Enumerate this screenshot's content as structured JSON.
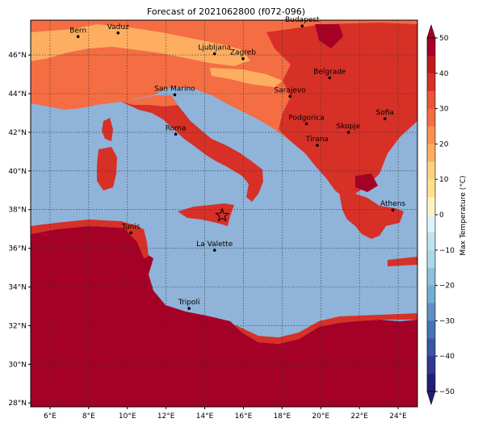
{
  "title": "Forecast of 2021062800 (f072-096)",
  "map": {
    "lon_range": [
      5,
      25
    ],
    "lat_range": [
      27.8,
      47.8
    ],
    "lon_ticks": [
      {
        "v": 6,
        "label": "6°E"
      },
      {
        "v": 8,
        "label": "8°E"
      },
      {
        "v": 10,
        "label": "10°E"
      },
      {
        "v": 12,
        "label": "12°E"
      },
      {
        "v": 14,
        "label": "14°E"
      },
      {
        "v": 16,
        "label": "16°E"
      },
      {
        "v": 18,
        "label": "18°E"
      },
      {
        "v": 20,
        "label": "20°E"
      },
      {
        "v": 22,
        "label": "22°E"
      },
      {
        "v": 24,
        "label": "24°E"
      }
    ],
    "lat_ticks": [
      {
        "v": 28,
        "label": "28°N"
      },
      {
        "v": 30,
        "label": "30°N"
      },
      {
        "v": 32,
        "label": "32°N"
      },
      {
        "v": 34,
        "label": "34°N"
      },
      {
        "v": 36,
        "label": "36°N"
      },
      {
        "v": 38,
        "label": "38°N"
      },
      {
        "v": 40,
        "label": "40°N"
      },
      {
        "v": 42,
        "label": "42°N"
      },
      {
        "v": 44,
        "label": "44°N"
      },
      {
        "v": 46,
        "label": "46°N"
      }
    ],
    "grid": true,
    "sea_color": "#8fb3d9",
    "land_colors": {
      "hot": "#a50026",
      "warm": "#d73027",
      "mild": "#f46d43",
      "cool": "#fdae61"
    },
    "cities": [
      {
        "name": "Bern",
        "lon": 7.45,
        "lat": 46.95
      },
      {
        "name": "Vaduz",
        "lon": 9.52,
        "lat": 47.14
      },
      {
        "name": "Budapest",
        "lon": 19.04,
        "lat": 47.5
      },
      {
        "name": "Ljubljana",
        "lon": 14.51,
        "lat": 46.06
      },
      {
        "name": "Zagreb",
        "lon": 15.98,
        "lat": 45.81
      },
      {
        "name": "Belgrade",
        "lon": 20.46,
        "lat": 44.82
      },
      {
        "name": "San Marino",
        "lon": 12.45,
        "lat": 43.94
      },
      {
        "name": "Sarajevo",
        "lon": 18.41,
        "lat": 43.86
      },
      {
        "name": "Sofia",
        "lon": 23.32,
        "lat": 42.7
      },
      {
        "name": "Podgorica",
        "lon": 19.26,
        "lat": 42.44
      },
      {
        "name": "Skopje",
        "lon": 21.43,
        "lat": 42.0
      },
      {
        "name": "Roma",
        "lon": 12.5,
        "lat": 41.9
      },
      {
        "name": "Tirana",
        "lon": 19.82,
        "lat": 41.33
      },
      {
        "name": "Athens",
        "lon": 23.73,
        "lat": 37.98
      },
      {
        "name": "Tunis",
        "lon": 10.18,
        "lat": 36.8
      },
      {
        "name": "La Valette",
        "lon": 14.51,
        "lat": 35.9
      },
      {
        "name": "Tripoli",
        "lon": 13.19,
        "lat": 32.89
      }
    ],
    "marker": {
      "symbol": "star",
      "lon": 14.9,
      "lat": 37.7
    }
  },
  "colorbar": {
    "label": "Max Temperature (°C)",
    "ticks": [
      "50",
      "40",
      "30",
      "20",
      "10",
      "0",
      "−10",
      "−20",
      "−30",
      "−40",
      "−50"
    ],
    "colors": [
      "#a50026",
      "#c2191f",
      "#d73027",
      "#ea5634",
      "#f46d43",
      "#f99153",
      "#fdae61",
      "#fdd182",
      "#fee090",
      "#fff4c0",
      "#e0f3f8",
      "#c0e2ee",
      "#abd9e9",
      "#8fc1dd",
      "#74add1",
      "#5f8fc5",
      "#4575b4",
      "#3b55a3",
      "#313695",
      "#221e78"
    ]
  }
}
